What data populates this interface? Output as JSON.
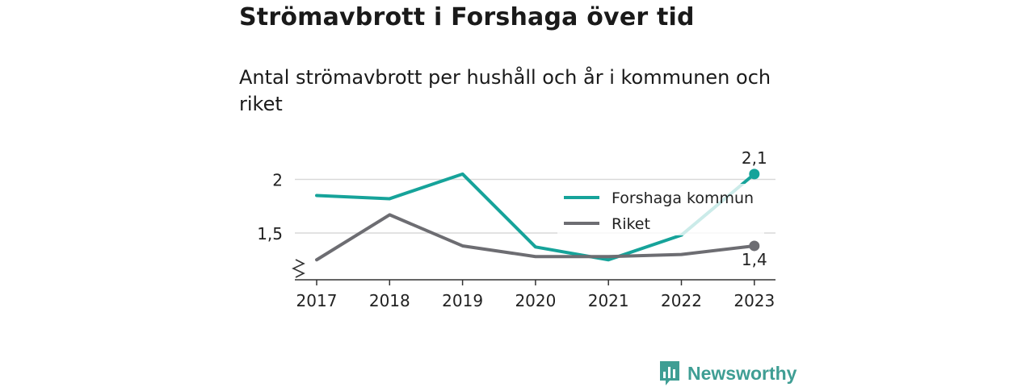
{
  "title": "Strömavbrott i Forshaga över tid",
  "subtitle": "Antal strömavbrott per hushåll och år i kommunen och riket",
  "brand": "Newsworthy",
  "colors": {
    "forshaga": "#16a39a",
    "riket": "#6d6d72",
    "grid": "#d9d9d9",
    "axis": "#333333",
    "brand": "#3f9e94"
  },
  "chart_data": {
    "type": "line",
    "x": [
      "2017",
      "2018",
      "2019",
      "2020",
      "2021",
      "2022",
      "2023"
    ],
    "series": [
      {
        "name": "Forshaga kommun",
        "values": [
          1.85,
          1.82,
          2.05,
          1.37,
          1.25,
          1.48,
          2.05
        ]
      },
      {
        "name": "Riket",
        "values": [
          1.25,
          1.67,
          1.38,
          1.28,
          1.28,
          1.3,
          1.38
        ]
      }
    ],
    "yticks": [
      {
        "value": 1.5,
        "label": "1,5"
      },
      {
        "value": 2,
        "label": "2"
      }
    ],
    "ylim": [
      1.0,
      2.1
    ],
    "axis_break": true,
    "end_labels": [
      "2,1",
      "1,4"
    ],
    "grid": true,
    "legend_position": "upper-right"
  }
}
